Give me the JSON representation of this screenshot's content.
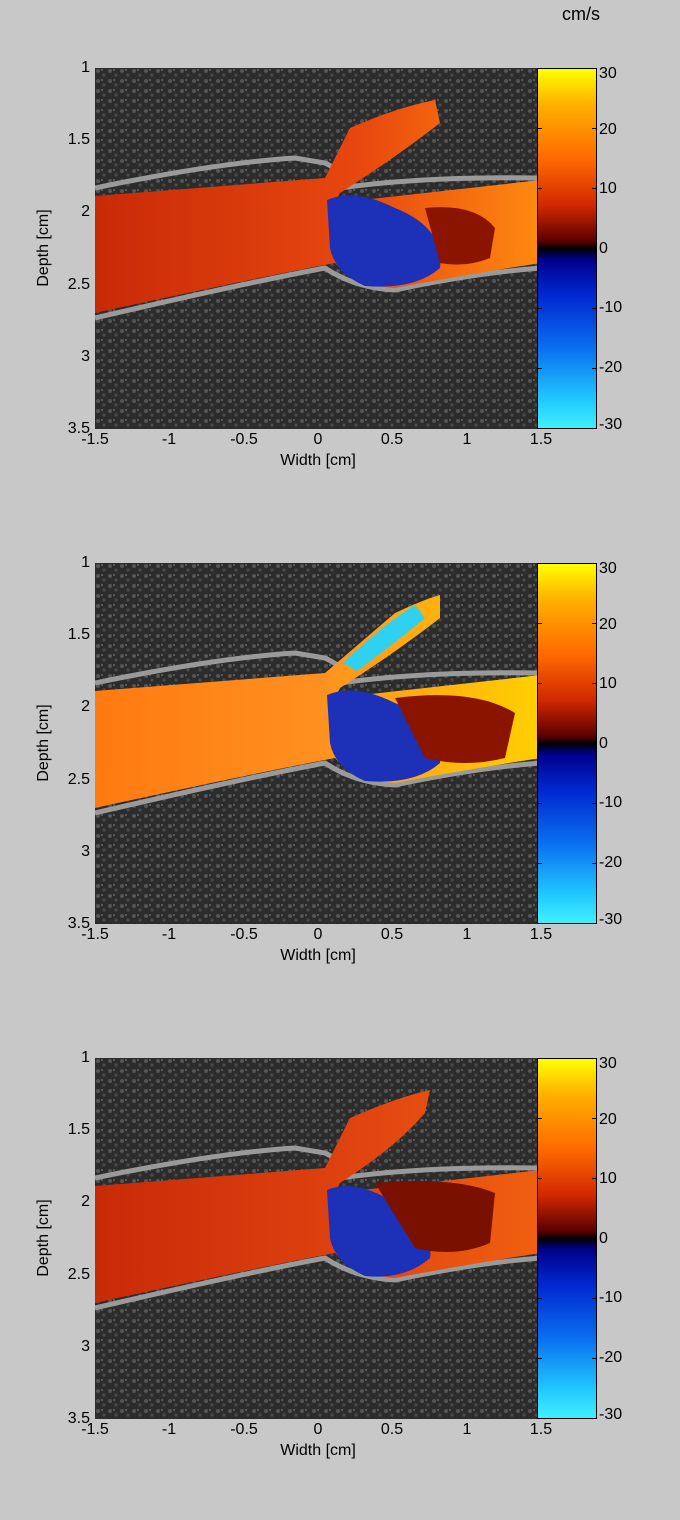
{
  "colorbar": {
    "unit": "cm/s",
    "ticks": [
      "30",
      "20",
      "10",
      "0",
      "-10",
      "-20",
      "-30"
    ],
    "range": [
      -30,
      30
    ]
  },
  "axes": {
    "xlabel": "Width [cm]",
    "ylabel": "Depth [cm]",
    "xticks": [
      "-1.5",
      "-1",
      "-0.5",
      "0",
      "0.5",
      "1",
      "1.5"
    ],
    "yticks": [
      "1",
      "1.5",
      "2",
      "2.5",
      "3",
      "3.5"
    ],
    "xlim": [
      -1.5,
      1.5
    ],
    "ylim": [
      1,
      3.5
    ]
  },
  "panels": [
    {
      "name": "panel-1"
    },
    {
      "name": "panel-2"
    },
    {
      "name": "panel-3"
    }
  ],
  "colors": {
    "background": "#c8c8c8",
    "tissue": "#3a3a3a",
    "forward_flow": "#e0400c",
    "reverse_flow": "#1030c0"
  }
}
